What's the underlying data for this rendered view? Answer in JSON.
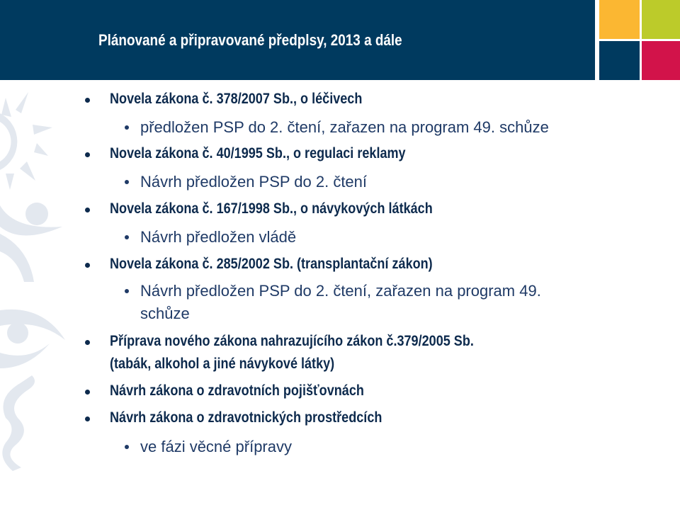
{
  "slide": {
    "title": "Plánované a připravované předplsy, 2013 a dále",
    "colors": {
      "header": "#003a5f",
      "orange": "#fbb732",
      "lime": "#bccb2a",
      "navy": "#003a5f",
      "crimson": "#d2134a"
    },
    "items": [
      {
        "level": 1,
        "text": "Novela zákona č. 378/2007 Sb., o léčivech"
      },
      {
        "level": 2,
        "text": "předložen PSP do 2. čtení, zařazen na program 49. schůze"
      },
      {
        "level": 1,
        "text": "Novela zákona č. 40/1995 Sb., o regulaci reklamy"
      },
      {
        "level": 2,
        "text": "Návrh předložen PSP do 2. čtení"
      },
      {
        "level": 1,
        "text": "Novela zákona č. 167/1998 Sb., o návykových látkách"
      },
      {
        "level": 2,
        "text": "Návrh předložen vládě"
      },
      {
        "level": 1,
        "text": "Novela zákona č. 285/2002 Sb. (transplantační zákon)"
      },
      {
        "level": 2,
        "text": "Návrh předložen PSP do 2. čtení, zařazen na program 49.",
        "cont": "schůze"
      },
      {
        "level": 1,
        "text": "Příprava nového zákona nahrazujícího zákon č.379/2005 Sb.",
        "cont": "(tabák, alkohol a jiné návykové látky)"
      },
      {
        "level": 1,
        "text": "Návrh zákona o zdravotních pojišťovnách"
      },
      {
        "level": 1,
        "text": "Návrh zákona o zdravotnických prostředcích"
      },
      {
        "level": 2,
        "text": "ve fázi věcné přípravy"
      }
    ]
  }
}
